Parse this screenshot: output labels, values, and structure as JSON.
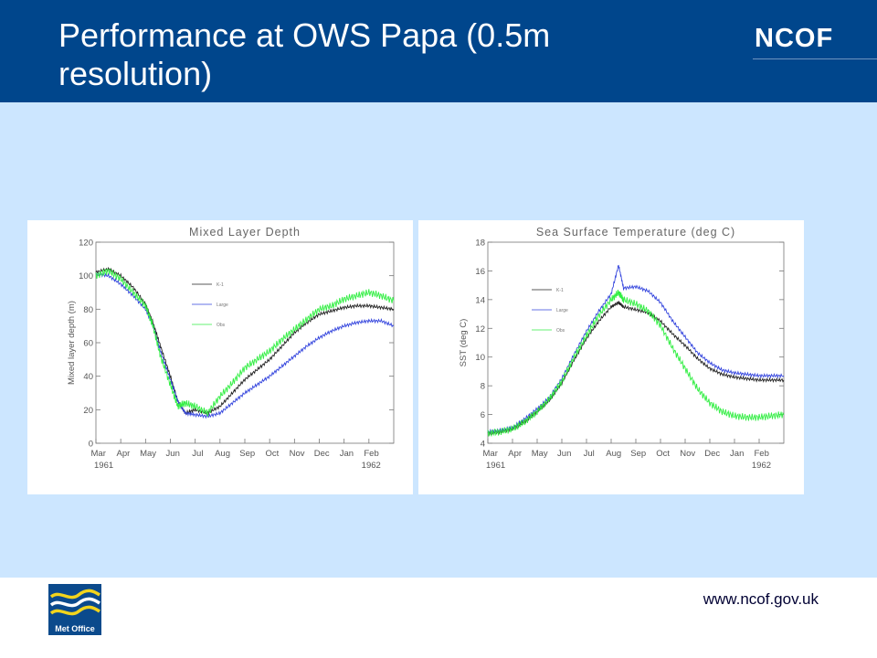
{
  "slide": {
    "title": "Performance at OWS Papa (0.5m resolution)",
    "brand": "NCOF",
    "logo_text": "Met Office",
    "url": "www.ncof.gov.uk",
    "colors": {
      "header": "#00468c",
      "background": "#cce6ff",
      "k1": "#222222",
      "large": "#3344dd",
      "obs": "#33ee44"
    }
  },
  "chart_data": [
    {
      "type": "line",
      "title": "Mixed Layer Depth",
      "ylabel": "Mixed layer depth (m)",
      "ylim": [
        0,
        120
      ],
      "yticks": [
        0,
        20,
        40,
        60,
        80,
        100,
        120
      ],
      "xticks": [
        "Mar",
        "Apr",
        "May",
        "Jun",
        "Jul",
        "Aug",
        "Sep",
        "Oct",
        "Nov",
        "Dec",
        "Jan",
        "Feb"
      ],
      "xyears": [
        "1961",
        "1962"
      ],
      "x_range_months": [
        0,
        12
      ],
      "legend_position": "top-center",
      "series": [
        {
          "name": "K-1",
          "x": [
            0,
            0.5,
            1,
            1.5,
            2,
            2.3,
            2.6,
            3,
            3.3,
            3.6,
            4,
            4.5,
            5,
            5.5,
            6,
            6.5,
            7,
            7.5,
            8,
            8.5,
            9,
            9.5,
            10,
            10.5,
            11,
            11.5,
            12
          ],
          "y": [
            102,
            104,
            100,
            93,
            83,
            72,
            58,
            40,
            25,
            18,
            20,
            18,
            22,
            30,
            38,
            44,
            50,
            58,
            66,
            72,
            77,
            79,
            81,
            82,
            82,
            81,
            80
          ]
        },
        {
          "name": "Large",
          "x": [
            0,
            0.5,
            1,
            1.5,
            2,
            2.3,
            2.6,
            3,
            3.3,
            3.6,
            4,
            4.5,
            5,
            5.5,
            6,
            6.5,
            7,
            7.5,
            8,
            8.5,
            9,
            9.5,
            10,
            10.5,
            11,
            11.5,
            12
          ],
          "y": [
            101,
            100,
            95,
            88,
            80,
            70,
            55,
            38,
            25,
            18,
            17,
            16,
            18,
            24,
            30,
            35,
            40,
            46,
            52,
            58,
            63,
            67,
            70,
            72,
            73,
            73,
            70
          ]
        },
        {
          "name": "Obs",
          "x": [
            0,
            0.5,
            1,
            1.5,
            2,
            2.3,
            2.6,
            3,
            3.3,
            3.6,
            4,
            4.5,
            5,
            5.5,
            6,
            6.5,
            7,
            7.5,
            8,
            8.5,
            9,
            9.5,
            10,
            10.5,
            11,
            11.5,
            12
          ],
          "y": [
            100,
            103,
            98,
            90,
            82,
            70,
            52,
            35,
            22,
            24,
            22,
            18,
            28,
            36,
            45,
            50,
            55,
            62,
            68,
            74,
            80,
            82,
            86,
            88,
            90,
            88,
            85
          ]
        }
      ]
    },
    {
      "type": "line",
      "title": "Sea Surface Temperature (deg C)",
      "ylabel": "SST (deg C)",
      "ylim": [
        4,
        18
      ],
      "yticks": [
        4,
        6,
        8,
        10,
        12,
        14,
        16,
        18
      ],
      "xticks": [
        "Mar",
        "Apr",
        "May",
        "Jun",
        "Jul",
        "Aug",
        "Sep",
        "Oct",
        "Nov",
        "Dec",
        "Jan",
        "Feb"
      ],
      "xyears": [
        "1961",
        "1962"
      ],
      "x_range_months": [
        0,
        12
      ],
      "legend_position": "top-left",
      "series": [
        {
          "name": "K-1",
          "x": [
            0,
            0.5,
            1,
            1.5,
            2,
            2.5,
            3,
            3.5,
            4,
            4.5,
            5,
            5.3,
            5.5,
            6,
            6.5,
            7,
            7.5,
            8,
            8.5,
            9,
            9.5,
            10,
            10.5,
            11,
            11.5,
            12
          ],
          "y": [
            4.7,
            4.8,
            5.0,
            5.5,
            6.2,
            7.0,
            8.2,
            9.8,
            11.3,
            12.5,
            13.5,
            13.8,
            13.5,
            13.3,
            13.1,
            12.5,
            11.6,
            10.8,
            9.9,
            9.2,
            8.8,
            8.6,
            8.5,
            8.4,
            8.4,
            8.4
          ]
        },
        {
          "name": "Large",
          "x": [
            0,
            0.5,
            1,
            1.5,
            2,
            2.5,
            3,
            3.5,
            4,
            4.5,
            5,
            5.3,
            5.5,
            6,
            6.5,
            7,
            7.5,
            8,
            8.5,
            9,
            9.5,
            10,
            10.5,
            11,
            11.5,
            12
          ],
          "y": [
            4.8,
            4.9,
            5.1,
            5.7,
            6.4,
            7.2,
            8.5,
            10.2,
            11.8,
            13.2,
            14.4,
            16.4,
            14.8,
            14.9,
            14.6,
            13.8,
            12.5,
            11.4,
            10.3,
            9.6,
            9.1,
            8.9,
            8.8,
            8.7,
            8.7,
            8.7
          ]
        },
        {
          "name": "Obs",
          "x": [
            0,
            0.5,
            1,
            1.5,
            2,
            2.5,
            3,
            3.5,
            4,
            4.5,
            5,
            5.3,
            5.5,
            6,
            6.5,
            7,
            7.5,
            8,
            8.5,
            9,
            9.5,
            10,
            10.5,
            11,
            11.5,
            12
          ],
          "y": [
            4.7,
            4.8,
            5.0,
            5.5,
            6.2,
            7.1,
            8.3,
            10.0,
            11.5,
            12.9,
            14.0,
            14.5,
            14.0,
            13.7,
            13.2,
            12.2,
            10.6,
            9.2,
            7.8,
            6.8,
            6.2,
            5.9,
            5.8,
            5.8,
            5.9,
            6.0
          ]
        }
      ]
    }
  ]
}
